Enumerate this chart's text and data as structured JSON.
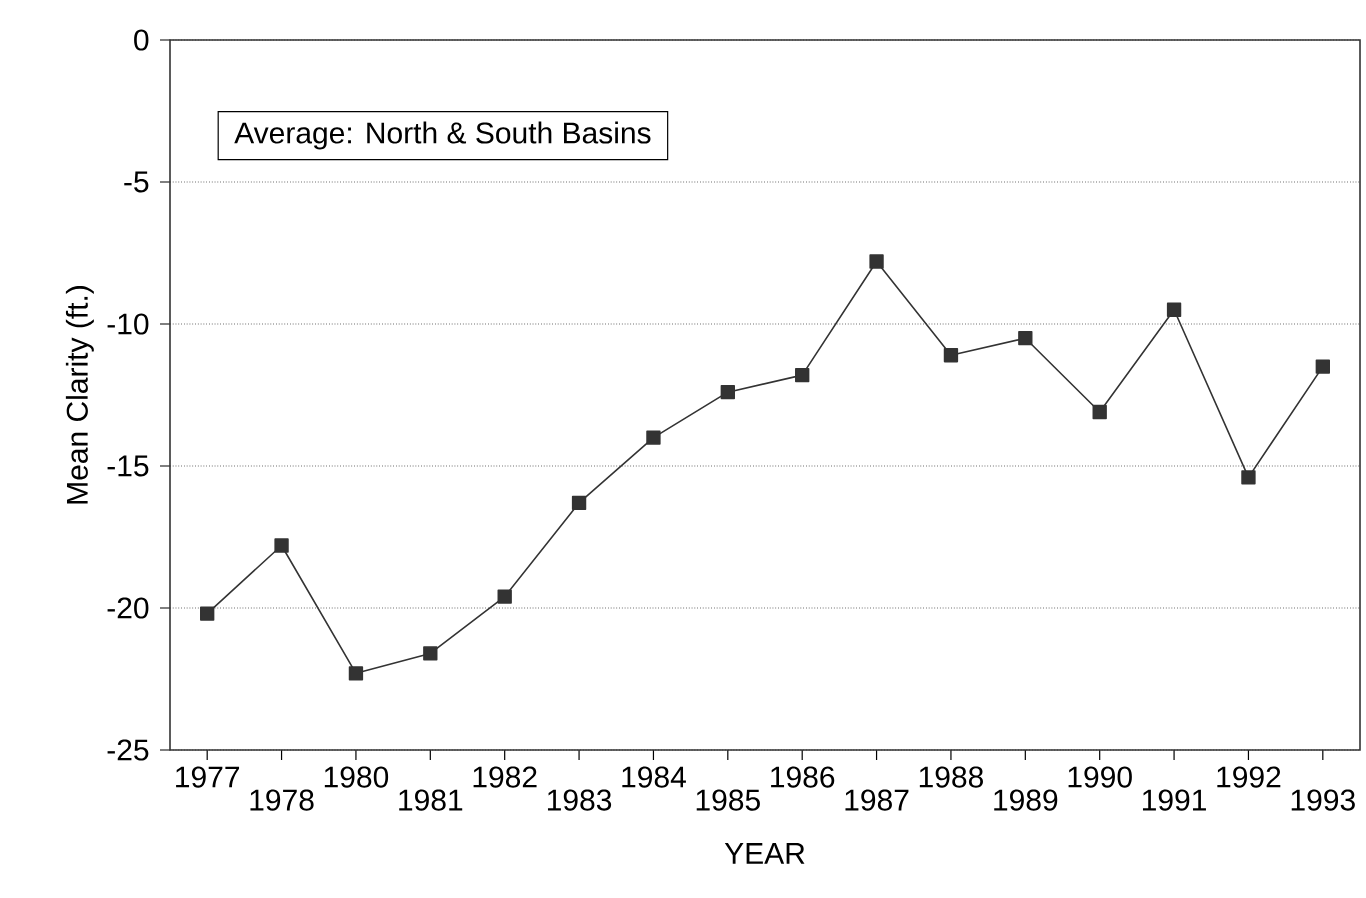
{
  "chart_data": {
    "type": "line",
    "xlabel": "YEAR",
    "ylabel": "Mean Clarity  (ft.)",
    "annotations": [
      "Average: North & South Basins"
    ],
    "categories": [
      "1977",
      "1978",
      "1980",
      "1981",
      "1982",
      "1983",
      "1984",
      "1985",
      "1986",
      "1987",
      "1988",
      "1989",
      "1990",
      "1991",
      "1992",
      "1993"
    ],
    "series": [
      {
        "color": "#333333",
        "values": [
          -20.2,
          -17.8,
          -22.3,
          -21.6,
          -19.6,
          -16.3,
          -14.0,
          -12.4,
          -11.8,
          -7.8,
          -11.1,
          -10.5,
          -13.1,
          -9.5,
          -15.4,
          -11.5
        ]
      }
    ],
    "ylim": [
      -25,
      0
    ],
    "yticks": [
      -25,
      -20,
      -15,
      -10,
      -5,
      0
    ],
    "grid": "y",
    "marker": "square",
    "line_style": "solid"
  }
}
